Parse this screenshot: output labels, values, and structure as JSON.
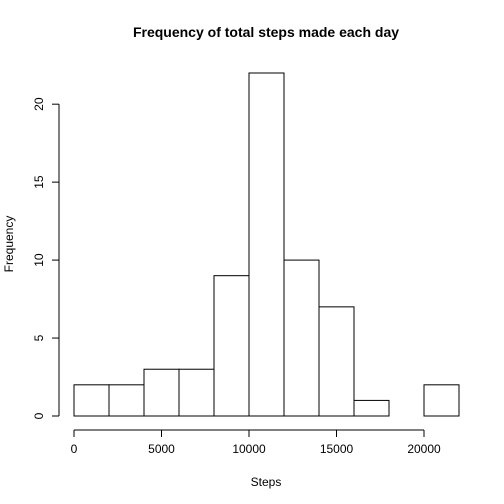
{
  "chart_data": {
    "type": "bar",
    "title": "Frequency of total steps made each day",
    "xlabel": "Steps",
    "ylabel": "Frequency",
    "bins": [
      {
        "x0": 0,
        "x1": 2000,
        "count": 2
      },
      {
        "x0": 2000,
        "x1": 4000,
        "count": 2
      },
      {
        "x0": 4000,
        "x1": 6000,
        "count": 3
      },
      {
        "x0": 6000,
        "x1": 8000,
        "count": 3
      },
      {
        "x0": 8000,
        "x1": 10000,
        "count": 9
      },
      {
        "x0": 10000,
        "x1": 12000,
        "count": 22
      },
      {
        "x0": 12000,
        "x1": 14000,
        "count": 10
      },
      {
        "x0": 14000,
        "x1": 16000,
        "count": 7
      },
      {
        "x0": 16000,
        "x1": 18000,
        "count": 1
      },
      {
        "x0": 18000,
        "x1": 20000,
        "count": 0
      },
      {
        "x0": 20000,
        "x1": 22000,
        "count": 2
      }
    ],
    "xticks": [
      0,
      5000,
      10000,
      15000,
      20000
    ],
    "yticks": [
      0,
      5,
      10,
      15,
      20
    ],
    "xlim": [
      0,
      22000
    ],
    "ylim": [
      0,
      22
    ],
    "grid": false,
    "legend": "none"
  }
}
